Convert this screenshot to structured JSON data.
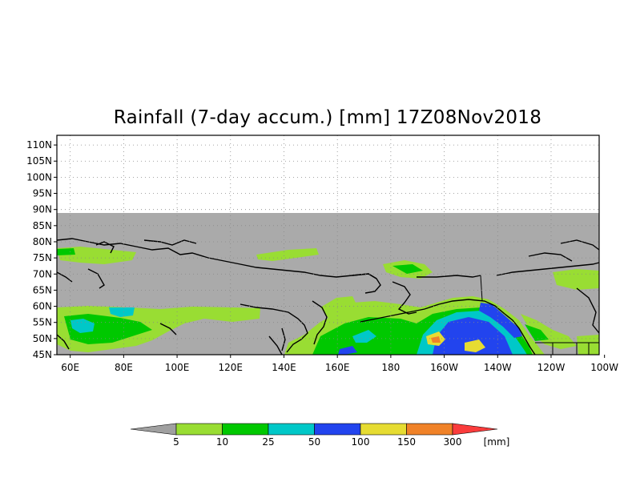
{
  "title": "Rainfall (7-day accum.) [mm] 17Z08Nov2018",
  "lat_ticks": [
    "110N",
    "105N",
    "100N",
    "95N",
    "90N",
    "85N",
    "80N",
    "75N",
    "70N",
    "65N",
    "60N",
    "55N",
    "50N",
    "45N"
  ],
  "lon_ticks": [
    "60E",
    "80E",
    "100E",
    "120E",
    "140E",
    "160E",
    "180",
    "160W",
    "140W",
    "120W",
    "100W"
  ],
  "colors": {
    "no_data": "#aaaaaa",
    "light_green": "#99dd33",
    "green": "#00c800",
    "cyan": "#00c8c8",
    "blue": "#2244ee",
    "yellow": "#e6dc32",
    "orange": "#f08228",
    "red": "#fa3c3c",
    "grid": "#888888",
    "coast": "#000000"
  },
  "colorbar": {
    "labels": [
      "5",
      "10",
      "25",
      "50",
      "100",
      "150",
      "300"
    ],
    "unit": "[mm]",
    "bins": [
      {
        "color": "#99dd33"
      },
      {
        "color": "#00c800"
      },
      {
        "color": "#00c8c8"
      },
      {
        "color": "#2244ee"
      },
      {
        "color": "#e6dc32"
      },
      {
        "color": "#f08228"
      }
    ],
    "under_color": "#a0a0a0",
    "over_color": "#fa3c3c"
  }
}
